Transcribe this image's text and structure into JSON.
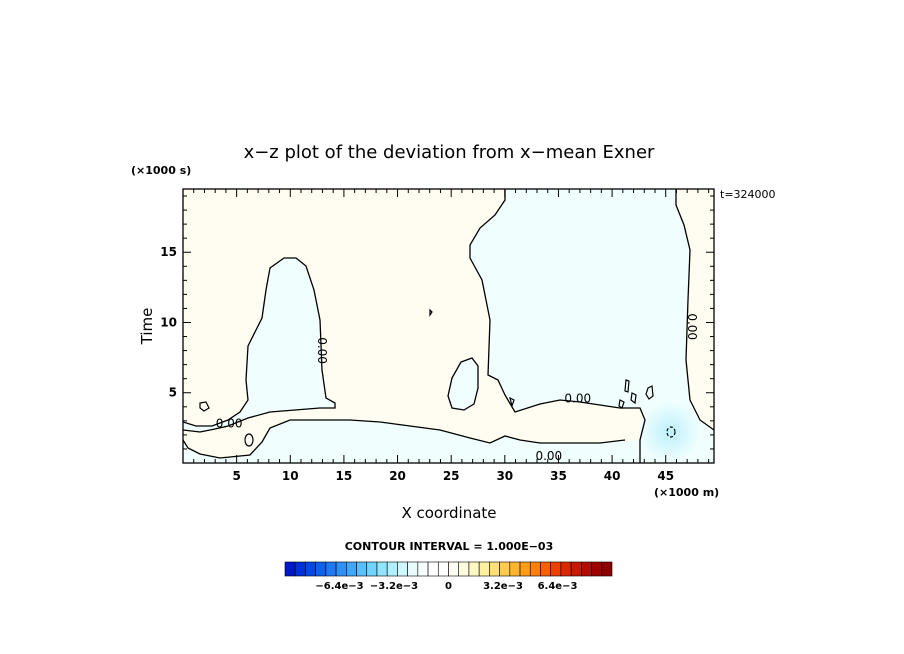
{
  "chart_data": {
    "type": "contour",
    "title": "x−z plot of the deviation from x−mean Exner",
    "xlabel": "X coordinate",
    "ylabel": "Time",
    "x_unit": "(×1000 m)",
    "y_unit": "(×1000 s)",
    "time_stamp": "t=324000",
    "xlim": [
      0,
      49.5
    ],
    "ylim": [
      0,
      19.5
    ],
    "x_ticks": [
      5,
      10,
      15,
      20,
      25,
      30,
      35,
      40,
      45
    ],
    "y_ticks": [
      5,
      10,
      15
    ],
    "x_tick_labels": [
      "5",
      "10",
      "15",
      "20",
      "25",
      "30",
      "35",
      "40",
      "45"
    ],
    "y_tick_labels": [
      "5",
      "10",
      "15"
    ],
    "contour_labels": [
      {
        "text": "0.00",
        "x": 4.3,
        "y": 2.8
      },
      {
        "text": "0.00",
        "x": 12.9,
        "y": 8.0
      },
      {
        "text": "0.00",
        "x": 36.8,
        "y": 4.6
      },
      {
        "text": "0.00",
        "x": 34.1,
        "y": 0.5
      },
      {
        "text": "0.00",
        "x": 47.4,
        "y": 9.7
      }
    ],
    "contour_interval_label": "CONTOUR INTERVAL = 1.000E−03",
    "colorbar": {
      "min": -0.0096,
      "max": 0.0096,
      "tick_labels": [
        "−6.4e−3",
        "−3.2e−3",
        "0",
        "3.2e−3",
        "6.4e−3"
      ],
      "tick_values": [
        -0.0064,
        -0.0032,
        0,
        0.0032,
        0.0064
      ],
      "colors": [
        "#0018c8",
        "#0030d8",
        "#0048e8",
        "#1060f0",
        "#2078f4",
        "#3090f8",
        "#40a8fc",
        "#58c0fc",
        "#70d4fc",
        "#90e4fc",
        "#b0f0fc",
        "#d0f8fc",
        "#e8fcfc",
        "#f8fefe",
        "#ffffff",
        "#ffffff",
        "#fffef4",
        "#fffce0",
        "#fff8c4",
        "#fff0a0",
        "#ffe078",
        "#ffcc50",
        "#ffb430",
        "#ff9c18",
        "#ff8008",
        "#f86000",
        "#ec4000",
        "#dc2800",
        "#c81800",
        "#b40c00",
        "#a00000",
        "#900000"
      ]
    },
    "fill_colors": {
      "positive_region": "#fffdf2",
      "negative_region": "#f0fefe",
      "low_center": "#c8f4fc",
      "high_spot": "#fff6d6"
    }
  }
}
